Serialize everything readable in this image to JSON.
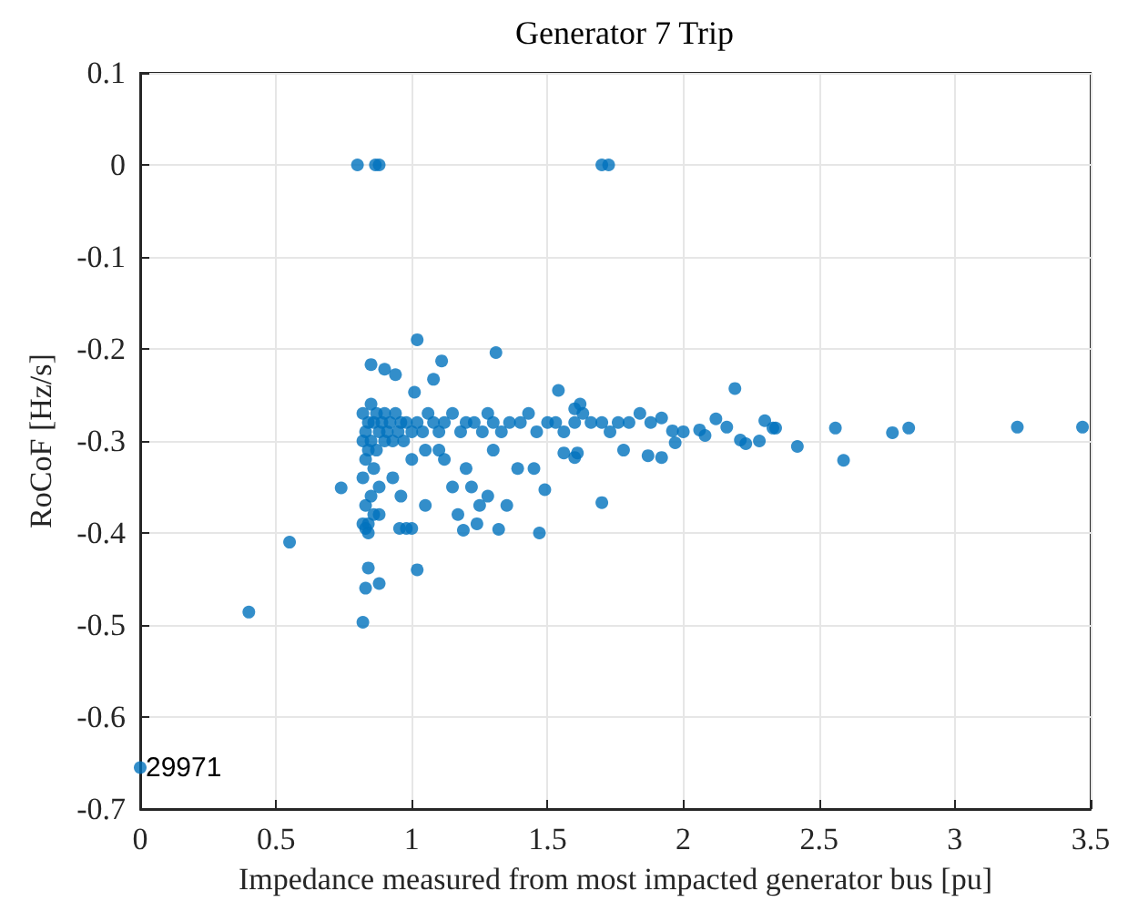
{
  "chart_data": {
    "type": "scatter",
    "title": "Generator 7 Trip",
    "xlabel": "Impedance measured from most impacted generator bus [pu]",
    "ylabel": "RoCoF [Hz/s]",
    "x": [
      0,
      0.4,
      0.55,
      0.74,
      0.8,
      0.82,
      0.83,
      0.84,
      0.88,
      0.866,
      0.88,
      1.7,
      1.725,
      0.82,
      0.82,
      0.82,
      0.83,
      0.83,
      0.83,
      0.84,
      0.84,
      0.84,
      0.85,
      0.85,
      0.85,
      0.86,
      0.86,
      0.86,
      0.87,
      0.87,
      0.88,
      0.88,
      0.89,
      0.9,
      0.9,
      0.91,
      0.92,
      0.93,
      0.94,
      0.95,
      0.96,
      0.97,
      0.98,
      1.0,
      1.02,
      1.04,
      1.06,
      1.08,
      1.1,
      1.12,
      1.15,
      1.18,
      1.2,
      1.23,
      1.26,
      1.28,
      1.3,
      1.33,
      1.36,
      1.4,
      1.43,
      1.46,
      1.5,
      1.53,
      1.56,
      1.6,
      1.63,
      1.66,
      1.7,
      1.73,
      1.76,
      1.8,
      1.84,
      1.88,
      1.92,
      1.96,
      2.0,
      2.06,
      2.08,
      2.12,
      2.16,
      2.19,
      2.21,
      2.23,
      2.28,
      2.3,
      2.33,
      2.34,
      2.42,
      2.56,
      2.59,
      2.77,
      2.83,
      3.23,
      3.47,
      1.02,
      1.31,
      0.85,
      0.9,
      0.94,
      1.11,
      1.08,
      1.54,
      1.01,
      1.62,
      1.6,
      0.84,
      0.83,
      0.88,
      1.02,
      0.82,
      1.47,
      1.7,
      1.49,
      1.45,
      1.39,
      1.32,
      0.955,
      0.98,
      1.0,
      1.19,
      1.15,
      1.56,
      1.61,
      1.6,
      1.78,
      1.87,
      1.92,
      1.97,
      1.05,
      1.12,
      1.2,
      1.25,
      1.28,
      0.93,
      0.96,
      1.0,
      1.05,
      1.1,
      1.22,
      1.3,
      1.35,
      1.17,
      1.24
    ],
    "values": [
      -0.655,
      -0.486,
      -0.41,
      -0.351,
      0,
      -0.497,
      -0.46,
      -0.438,
      -0.455,
      0,
      0,
      0,
      0,
      -0.27,
      -0.3,
      -0.34,
      -0.29,
      -0.32,
      -0.37,
      -0.28,
      -0.31,
      -0.39,
      -0.26,
      -0.3,
      -0.36,
      -0.28,
      -0.33,
      -0.38,
      -0.27,
      -0.31,
      -0.29,
      -0.35,
      -0.28,
      -0.27,
      -0.3,
      -0.29,
      -0.28,
      -0.3,
      -0.27,
      -0.29,
      -0.28,
      -0.3,
      -0.28,
      -0.29,
      -0.28,
      -0.29,
      -0.27,
      -0.28,
      -0.29,
      -0.28,
      -0.27,
      -0.29,
      -0.28,
      -0.28,
      -0.29,
      -0.27,
      -0.28,
      -0.29,
      -0.28,
      -0.28,
      -0.27,
      -0.29,
      -0.28,
      -0.28,
      -0.29,
      -0.28,
      -0.27,
      -0.28,
      -0.28,
      -0.29,
      -0.28,
      -0.28,
      -0.27,
      -0.28,
      -0.275,
      -0.289,
      -0.29,
      -0.288,
      -0.294,
      -0.276,
      -0.285,
      -0.243,
      -0.299,
      -0.303,
      -0.3,
      -0.278,
      -0.286,
      -0.286,
      -0.306,
      -0.286,
      -0.321,
      -0.291,
      -0.286,
      -0.285,
      -0.285,
      -0.19,
      -0.204,
      -0.217,
      -0.222,
      -0.228,
      -0.213,
      -0.233,
      -0.245,
      -0.247,
      -0.26,
      -0.265,
      -0.4,
      -0.395,
      -0.38,
      -0.44,
      -0.39,
      -0.4,
      -0.367,
      -0.353,
      -0.33,
      -0.33,
      -0.396,
      -0.395,
      -0.395,
      -0.395,
      -0.397,
      -0.35,
      -0.313,
      -0.313,
      -0.318,
      -0.31,
      -0.316,
      -0.318,
      -0.302,
      -0.31,
      -0.32,
      -0.33,
      -0.37,
      -0.36,
      -0.34,
      -0.36,
      -0.32,
      -0.37,
      -0.31,
      -0.35,
      -0.31,
      -0.37,
      -0.38,
      -0.39
    ],
    "color": "#0072bd",
    "marker": "circle",
    "xlim": [
      0,
      3.5
    ],
    "xticks": [
      0,
      0.5,
      1,
      1.5,
      2,
      2.5,
      3,
      3.5
    ],
    "ylim": [
      -0.7,
      0.1
    ],
    "yticks": [
      -0.7,
      -0.6,
      -0.5,
      -0.4,
      -0.3,
      -0.2,
      -0.1,
      0,
      0.1
    ],
    "grid": true,
    "annotations": [
      {
        "text": "29971",
        "x": 0,
        "y": -0.655
      }
    ]
  }
}
